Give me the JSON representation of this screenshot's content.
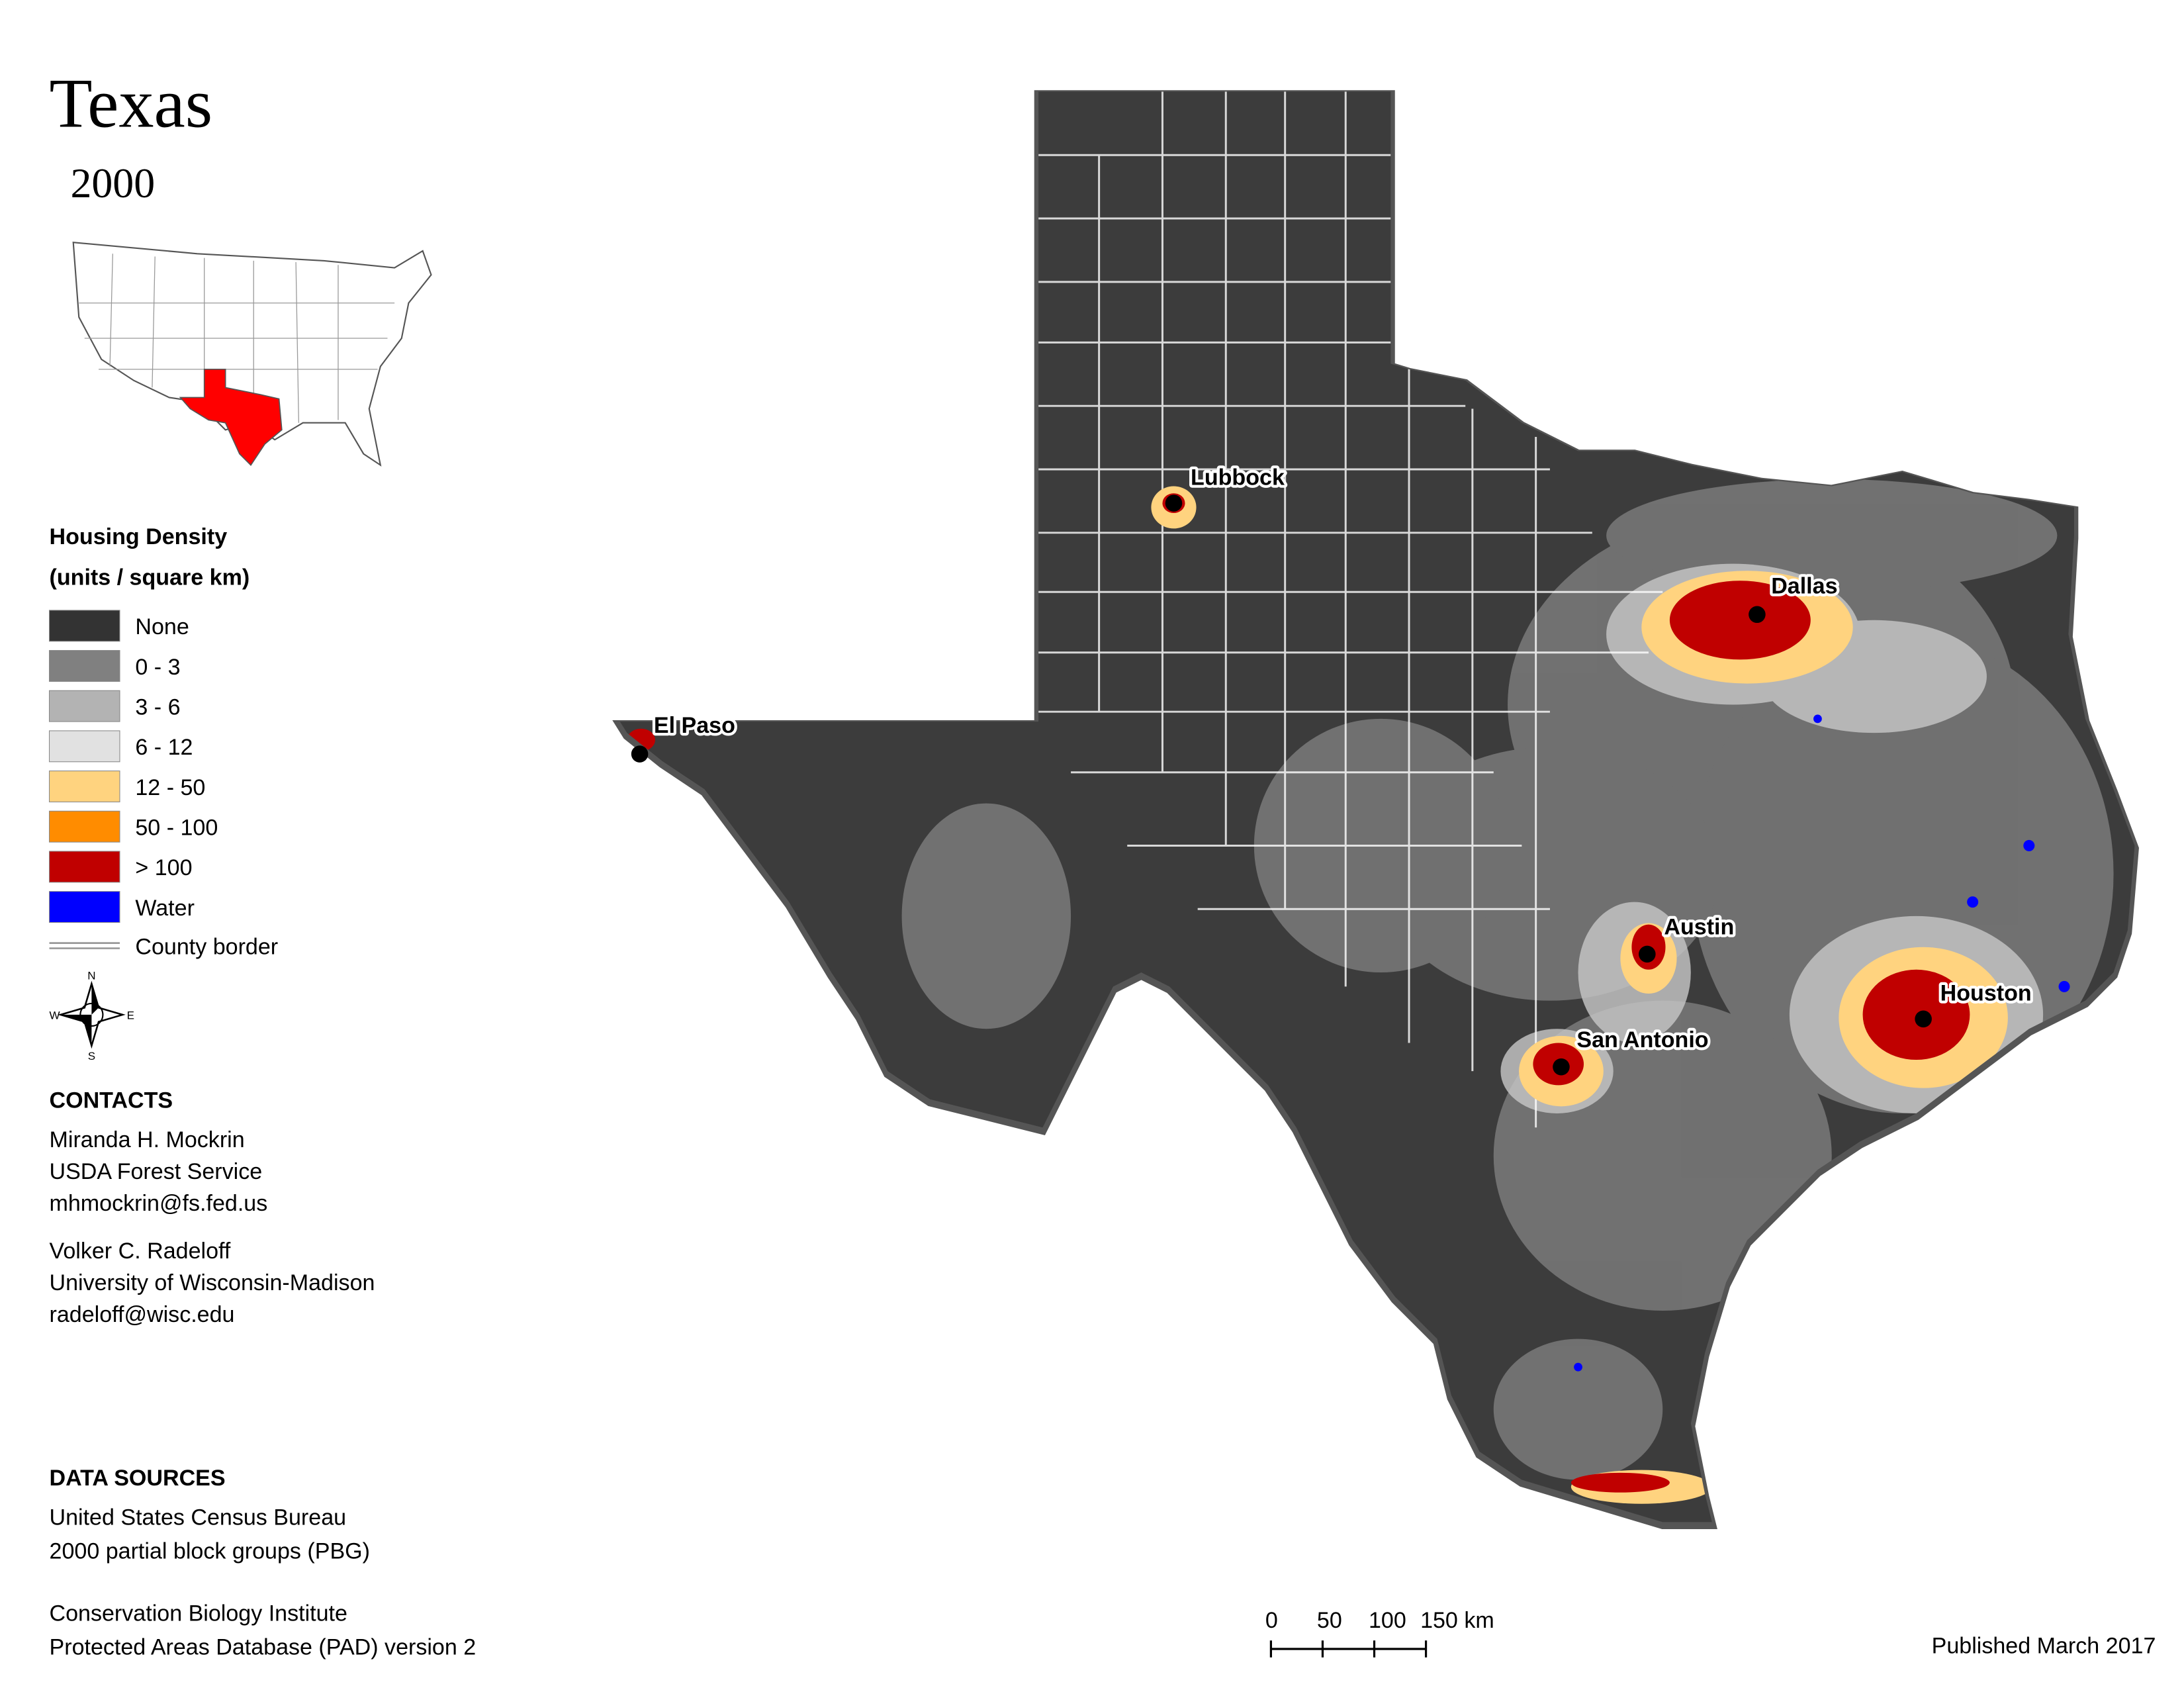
{
  "header": {
    "title": "Texas",
    "year": "2000"
  },
  "legend": {
    "title": "Housing Density",
    "subtitle": "(units / square km)",
    "items": [
      {
        "label": "None",
        "color": "#333333"
      },
      {
        "label": "0 - 3",
        "color": "#808080"
      },
      {
        "label": "3 - 6",
        "color": "#b3b3b3"
      },
      {
        "label": "6 - 12",
        "color": "#e1e1e1"
      },
      {
        "label": "12 - 50",
        "color": "#ffd37f"
      },
      {
        "label": "50 - 100",
        "color": "#ff8c00"
      },
      {
        "label": "> 100",
        "color": "#c00000"
      },
      {
        "label": "Water",
        "color": "#0000ff"
      }
    ],
    "border_label": "County border"
  },
  "compass": {
    "n": "N",
    "e": "E",
    "s": "S",
    "w": "W"
  },
  "cities": [
    "Lubbock",
    "El Paso",
    "Dallas",
    "Austin",
    "San Antonio",
    "Houston"
  ],
  "contacts": {
    "title": "CONTACTS",
    "people": [
      [
        "Miranda H. Mockrin",
        "USDA Forest Service",
        "mhmockrin@fs.fed.us"
      ],
      [
        "Volker C. Radeloff",
        "University of Wisconsin-Madison",
        "radeloff@wisc.edu"
      ]
    ]
  },
  "data_sources": {
    "title": "DATA SOURCES",
    "sources": [
      [
        "United States Census Bureau",
        "2000 partial block groups (PBG)"
      ],
      [
        "Conservation Biology Institute",
        "Protected Areas Database (PAD) version 2"
      ]
    ]
  },
  "scale_bar": {
    "ticks": [
      {
        "value": 0,
        "label": "0"
      },
      {
        "value": 50,
        "label": "50"
      },
      {
        "value": 100,
        "label": "100"
      },
      {
        "value": 150,
        "label": "150 km"
      }
    ]
  },
  "published": "Published March 2017"
}
